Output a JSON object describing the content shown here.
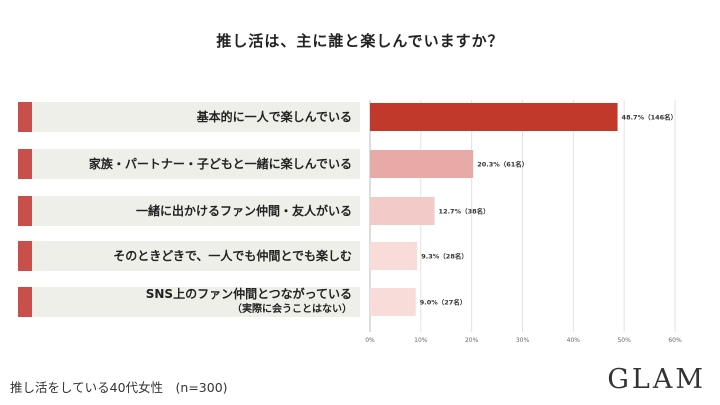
{
  "chart_data": {
    "type": "bar",
    "orientation": "horizontal",
    "title": "推し活は、主に誰と楽しんでいますか？",
    "categories": [
      "基本的に一人で楽しんでいる",
      "家族・パートナー・子どもと一緒に楽しんでいる",
      "一緒に出かけるファン仲間・友人がいる",
      "そのときどきで、一人でも仲間とでも楽しむ",
      "SNS上のファン仲間とつながっている（実際に会うことはない）"
    ],
    "category_lines": [
      [
        "基本的に一人で楽しんでいる"
      ],
      [
        "家族・パートナー・子どもと一緒に楽しんでいる"
      ],
      [
        "一緒に出かけるファン仲間・友人がいる"
      ],
      [
        "そのときどきで、一人でも仲間とでも楽しむ"
      ],
      [
        "SNS上のファン仲間とつながっている",
        "（実際に会うことはない）"
      ]
    ],
    "values": [
      48.7,
      20.3,
      12.7,
      9.3,
      9.0
    ],
    "data_labels": [
      "48.7%（146名）",
      "20.3%（61名）",
      "12.7%（38名）",
      "9.3%（28名）",
      "9.0%（27名）"
    ],
    "xlim": [
      0,
      60
    ],
    "xticks": [
      "0%",
      "10%",
      "20%",
      "30%",
      "40%",
      "50%",
      "60%"
    ],
    "grid": true,
    "colors": [
      "#c0392b",
      "#e8aaa6",
      "#f2cbc8",
      "#f7dcda",
      "#f7dcda"
    ],
    "accent_color": "#c9504a",
    "label_bg_color": "#efefea"
  },
  "footer": {
    "note": "推し活をしている40代女性　(n=300)",
    "logo": "GLAM"
  }
}
